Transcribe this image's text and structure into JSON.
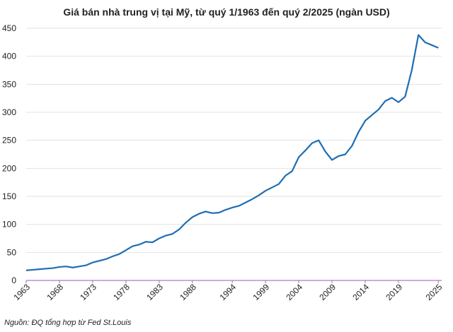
{
  "chart_data": {
    "type": "line",
    "title": "Giá bán nhà trung vị tại Mỹ, từ quý 1/1963 đến quý 2/2025 (ngàn USD)",
    "source": "Nguồn: ĐQ tổng hợp từ  Fed St.Louis",
    "x": [
      1963,
      1964,
      1965,
      1966,
      1967,
      1968,
      1969,
      1970,
      1971,
      1972,
      1973,
      1974,
      1975,
      1976,
      1977,
      1978,
      1979,
      1980,
      1981,
      1982,
      1983,
      1984,
      1985,
      1986,
      1987,
      1988,
      1989,
      1990,
      1991,
      1992,
      1993,
      1994,
      1995,
      1996,
      1997,
      1998,
      1999,
      2000,
      2001,
      2002,
      2003,
      2004,
      2005,
      2006,
      2007,
      2008,
      2009,
      2010,
      2011,
      2012,
      2013,
      2014,
      2015,
      2016,
      2017,
      2018,
      2019,
      2020,
      2021,
      2022,
      2023,
      2024,
      2025
    ],
    "values": [
      18,
      19,
      20,
      21,
      22,
      24,
      25,
      23,
      25,
      27,
      32,
      35,
      38,
      43,
      47,
      54,
      61,
      64,
      69,
      68,
      75,
      80,
      83,
      91,
      103,
      113,
      119,
      123,
      120,
      121,
      126,
      130,
      133,
      139,
      145,
      152,
      160,
      166,
      172,
      187,
      195,
      220,
      232,
      245,
      250,
      230,
      215,
      222,
      225,
      240,
      265,
      285,
      295,
      305,
      320,
      326,
      318,
      328,
      375,
      438,
      425,
      420,
      415
    ],
    "color": "#1f6db3",
    "xlim": [
      1963,
      2025.5
    ],
    "ylim": [
      0,
      450
    ],
    "xticks": [
      1963,
      1968,
      1973,
      1978,
      1983,
      1988,
      1994,
      1999,
      2004,
      2009,
      2014,
      2019,
      2025
    ],
    "yticks": [
      0,
      50,
      100,
      150,
      200,
      250,
      300,
      350,
      400,
      450
    ],
    "grid": true
  }
}
